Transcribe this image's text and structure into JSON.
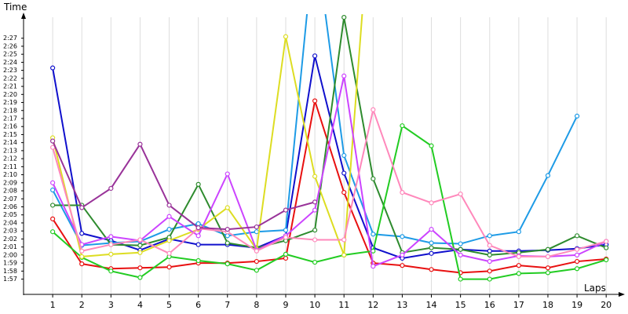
{
  "chart_data": {
    "type": "line",
    "y_label": "Time",
    "x_label": "Laps",
    "x": [
      1,
      2,
      3,
      4,
      5,
      6,
      7,
      8,
      9,
      10,
      11,
      12,
      13,
      14,
      15,
      16,
      17,
      18,
      19,
      20
    ],
    "xlim": [
      0,
      20.48
    ],
    "xticks": [
      1,
      2,
      3,
      4,
      5,
      6,
      7,
      8,
      9,
      10,
      11,
      12,
      13,
      14,
      15,
      16,
      17,
      18,
      19,
      20
    ],
    "ylim": [
      115.1,
      150
    ],
    "yticks": [
      {
        "value": 117,
        "label": "1:57"
      },
      {
        "value": 118,
        "label": "1:58"
      },
      {
        "value": 119,
        "label": "1:59"
      },
      {
        "value": 120,
        "label": "2:00"
      },
      {
        "value": 121,
        "label": "2:01"
      },
      {
        "value": 122,
        "label": "2:02"
      },
      {
        "value": 123,
        "label": "2:03"
      },
      {
        "value": 124,
        "label": "2:04"
      },
      {
        "value": 125,
        "label": "2:05"
      },
      {
        "value": 126,
        "label": "2:06"
      },
      {
        "value": 127,
        "label": "2:07"
      },
      {
        "value": 128,
        "label": "2:08"
      },
      {
        "value": 129,
        "label": "2:09"
      },
      {
        "value": 130,
        "label": "2:10"
      },
      {
        "value": 131,
        "label": "2:11"
      },
      {
        "value": 132,
        "label": "2:12"
      },
      {
        "value": 133,
        "label": "2:13"
      },
      {
        "value": 134,
        "label": "2:14"
      },
      {
        "value": 135,
        "label": "2:15"
      },
      {
        "value": 136,
        "label": "2:16"
      },
      {
        "value": 137,
        "label": "2:17"
      },
      {
        "value": 138,
        "label": "2:18"
      },
      {
        "value": 139,
        "label": "2:19"
      },
      {
        "value": 140,
        "label": "2:20"
      },
      {
        "value": 141,
        "label": "2:21"
      },
      {
        "value": 142,
        "label": "2:22"
      },
      {
        "value": 143,
        "label": "2:23"
      },
      {
        "value": 144,
        "label": "2:24"
      },
      {
        "value": 145,
        "label": "2:25"
      },
      {
        "value": 146,
        "label": "2:26"
      },
      {
        "value": 147,
        "label": "2:27"
      }
    ],
    "grid": true,
    "series": [
      {
        "color": "#e81010",
        "values": [
          124.5,
          118.9,
          118.3,
          118.4,
          118.5,
          119,
          119,
          119.2,
          119.6,
          139.2,
          127.8,
          119,
          118.7,
          118.2,
          117.8,
          118,
          118.7,
          118.4,
          119.2,
          119.5
        ]
      },
      {
        "color": "#1010cc",
        "values": [
          143.3,
          122.7,
          121.8,
          120.6,
          122,
          121.3,
          121.3,
          120.9,
          122.4,
          144.8,
          130.2,
          120.9,
          119.6,
          120.2,
          120.7,
          120.5,
          120.5,
          120.6,
          120.8,
          121.3
        ]
      },
      {
        "color": "#1e9be6",
        "values": [
          128.1,
          121.2,
          121.5,
          121.7,
          123.2,
          123.9,
          122.4,
          122.9,
          123.1,
          160,
          132.4,
          122.6,
          122.3,
          121.5,
          121.4,
          122.4,
          122.9,
          129.9,
          137.3,
          null
        ]
      },
      {
        "color": "#2e8b2e",
        "values": [
          126.2,
          126.2,
          121.3,
          121.2,
          122.2,
          128.8,
          121.5,
          120.9,
          121.8,
          123.1,
          149.6,
          129.5,
          120.3,
          120.9,
          120.7,
          120,
          120.3,
          120.7,
          122.4,
          120.9
        ]
      },
      {
        "color": "#22cc22",
        "values": [
          122.9,
          119.7,
          118,
          117.2,
          119.8,
          119.3,
          118.9,
          118.1,
          120.1,
          119.1,
          120,
          120.5,
          136.1,
          133.6,
          117,
          117,
          117.7,
          117.8,
          118.3,
          119.4
        ]
      },
      {
        "color": "#dddd22",
        "values": [
          134.6,
          119.8,
          120.1,
          120.3,
          121.8,
          123.2,
          125.9,
          120.7,
          147.2,
          129.8,
          120,
          168,
          null,
          null,
          null,
          null,
          null,
          null,
          null,
          null
        ]
      },
      {
        "color": "#cc44ff",
        "values": [
          129,
          121.3,
          122.3,
          121.8,
          124.8,
          122.4,
          130.1,
          120.6,
          122.4,
          125.6,
          142.3,
          118.6,
          120,
          123.2,
          120,
          119.2,
          119.9,
          119.8,
          120,
          121.7
        ]
      },
      {
        "color": "#ff88bb",
        "values": [
          133.4,
          120.5,
          121.3,
          121.9,
          120.2,
          123.3,
          122.9,
          120.5,
          122.2,
          121.9,
          121.9,
          138.1,
          127.8,
          126.5,
          127.6,
          121.2,
          119.8,
          119.8,
          120.7,
          121.7
        ]
      },
      {
        "color": "#993399",
        "values": [
          134.2,
          125.9,
          128.3,
          133.8,
          126.2,
          123.4,
          123.2,
          123.5,
          125.6,
          126.6,
          null,
          null,
          null,
          null,
          null,
          null,
          null,
          null,
          null,
          null
        ]
      }
    ]
  }
}
